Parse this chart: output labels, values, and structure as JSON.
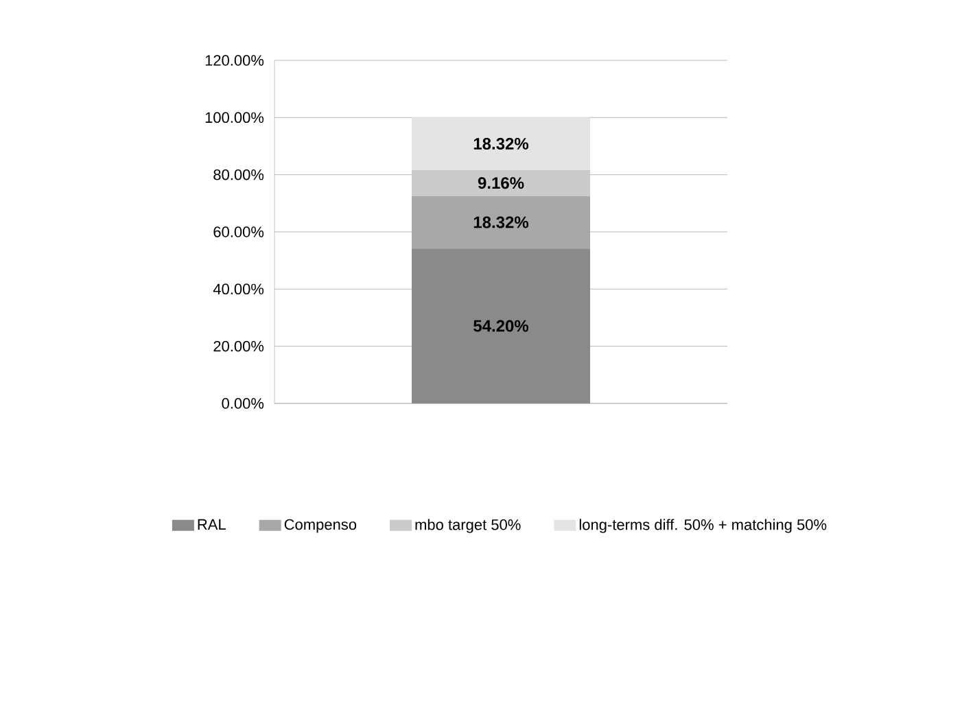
{
  "chart_data": {
    "type": "bar",
    "stacked": true,
    "categories": [
      null
    ],
    "series": [
      {
        "name": "RAL",
        "color": "#8a8a8a",
        "values": [
          54.2
        ],
        "value_labels": [
          "54.20%"
        ]
      },
      {
        "name": "Compenso",
        "color": "#a8a8a8",
        "values": [
          18.32
        ],
        "value_labels": [
          "18.32%"
        ]
      },
      {
        "name": "mbo target 50%",
        "color": "#cbcbcb",
        "values": [
          9.16
        ],
        "value_labels": [
          "9.16%"
        ]
      },
      {
        "name": "long-terms diff. 50% + matching 50%",
        "color": "#e4e4e4",
        "values": [
          18.32
        ],
        "value_labels": [
          "18.32%"
        ]
      }
    ],
    "ylim": [
      0,
      120
    ],
    "yticks": [
      {
        "value": 0,
        "label": "0.00%"
      },
      {
        "value": 20,
        "label": "20.00%"
      },
      {
        "value": 40,
        "label": "40.00%"
      },
      {
        "value": 60,
        "label": "60.00%"
      },
      {
        "value": 80,
        "label": "80.00%"
      },
      {
        "value": 100,
        "label": "100.00%"
      },
      {
        "value": 120,
        "label": "120.00%"
      }
    ],
    "grid": "y",
    "legend": "bottom",
    "tick_labels": "y"
  }
}
